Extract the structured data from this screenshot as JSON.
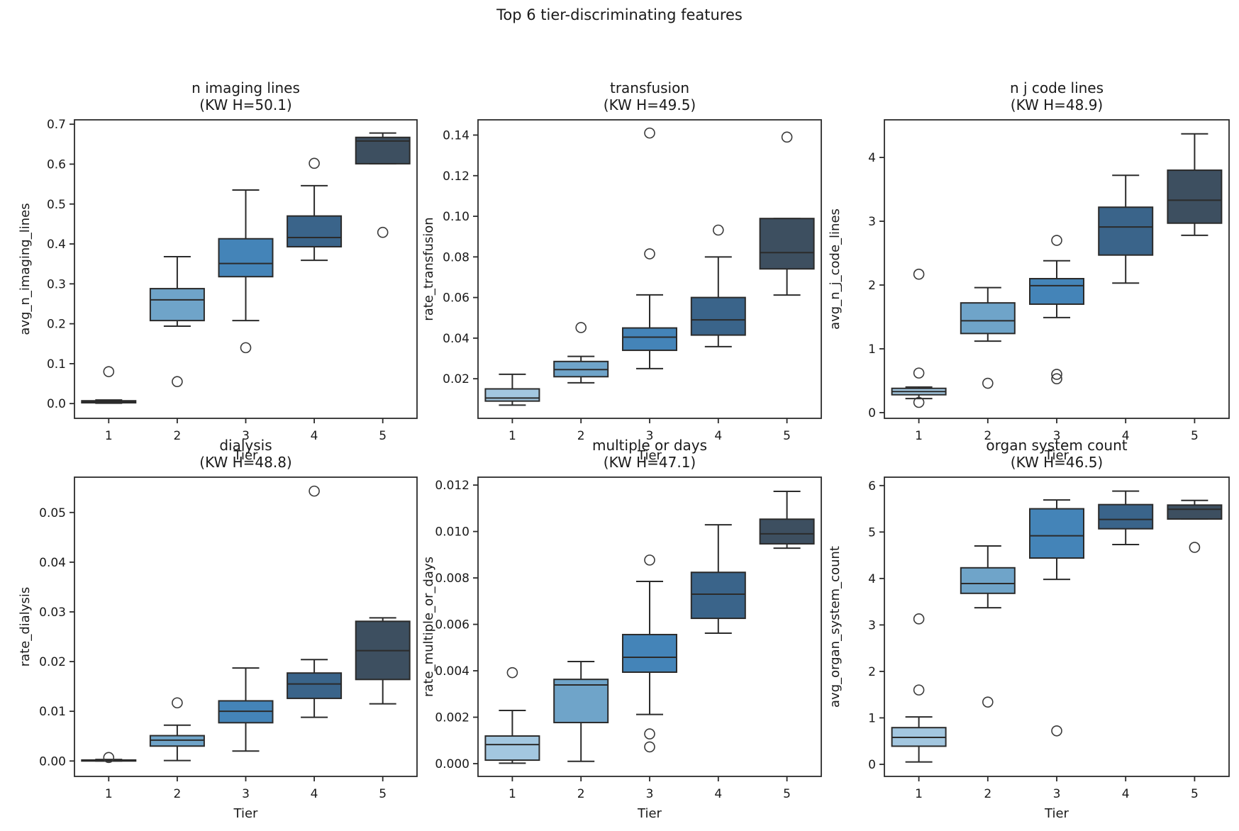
{
  "figure_title": "Top 6 tier-discriminating features",
  "palette": {
    "tier_colors": [
      "#a3c7e0",
      "#6fa4c9",
      "#4484b8",
      "#3a648a",
      "#3d4f60"
    ],
    "box_edge": "#2b2b2b",
    "text_color": "#1a1a1a",
    "background": "#ffffff"
  },
  "categories": [
    "1",
    "2",
    "3",
    "4",
    "5"
  ],
  "chart_data": [
    {
      "type": "box",
      "title": "n imaging lines",
      "subtitle": "(KW H=50.1)",
      "kw_h": 50.1,
      "xlabel": "Tier",
      "ylabel": "avg_n_imaging_lines",
      "ylim": [
        -0.037,
        0.711
      ],
      "yticks": {
        "values": [
          0.0,
          0.1,
          0.2,
          0.3,
          0.4,
          0.5,
          0.6,
          0.7
        ],
        "labels": [
          "0.0",
          "0.1",
          "0.2",
          "0.3",
          "0.4",
          "0.5",
          "0.6",
          "0.7"
        ]
      },
      "boxes": [
        {
          "tier": "1",
          "whislo": 0.001,
          "q1": 0.002,
          "med": 0.0045,
          "q3": 0.007,
          "whishi": 0.009,
          "fliers": [
            0.08
          ]
        },
        {
          "tier": "2",
          "whislo": 0.194,
          "q1": 0.208,
          "med": 0.26,
          "q3": 0.288,
          "whishi": 0.368,
          "fliers": [
            0.055
          ]
        },
        {
          "tier": "3",
          "whislo": 0.208,
          "q1": 0.318,
          "med": 0.351,
          "q3": 0.413,
          "whishi": 0.535,
          "fliers": [
            0.14
          ]
        },
        {
          "tier": "4",
          "whislo": 0.359,
          "q1": 0.393,
          "med": 0.416,
          "q3": 0.47,
          "whishi": 0.546,
          "fliers": [
            0.602
          ]
        },
        {
          "tier": "5",
          "whislo": 0.601,
          "q1": 0.601,
          "med": 0.658,
          "q3": 0.667,
          "whishi": 0.678,
          "fliers": [
            0.429
          ]
        }
      ]
    },
    {
      "type": "box",
      "title": "transfusion",
      "subtitle": "(KW H=49.5)",
      "kw_h": 49.5,
      "xlabel": "Tier",
      "ylabel": "rate_transfusion",
      "ylim": [
        0.0005,
        0.1475
      ],
      "yticks": {
        "values": [
          0.02,
          0.04,
          0.06,
          0.08,
          0.1,
          0.12,
          0.14
        ],
        "labels": [
          "0.02",
          "0.04",
          "0.06",
          "0.08",
          "0.10",
          "0.12",
          "0.14"
        ]
      },
      "boxes": [
        {
          "tier": "1",
          "whislo": 0.007,
          "q1": 0.009,
          "med": 0.0105,
          "q3": 0.015,
          "whishi": 0.0222,
          "fliers": []
        },
        {
          "tier": "2",
          "whislo": 0.018,
          "q1": 0.021,
          "med": 0.0245,
          "q3": 0.0285,
          "whishi": 0.031,
          "fliers": [
            0.0452
          ]
        },
        {
          "tier": "3",
          "whislo": 0.025,
          "q1": 0.034,
          "med": 0.0405,
          "q3": 0.045,
          "whishi": 0.0613,
          "fliers": [
            0.0815,
            0.141
          ]
        },
        {
          "tier": "4",
          "whislo": 0.0358,
          "q1": 0.0415,
          "med": 0.049,
          "q3": 0.06,
          "whishi": 0.08,
          "fliers": [
            0.0932
          ]
        },
        {
          "tier": "5",
          "whislo": 0.0612,
          "q1": 0.0741,
          "med": 0.0821,
          "q3": 0.0989,
          "whishi": 0.0989,
          "fliers": [
            0.139
          ]
        }
      ]
    },
    {
      "type": "box",
      "title": "n j code lines",
      "subtitle": "(KW H=48.9)",
      "kw_h": 48.9,
      "xlabel": "Tier",
      "ylabel": "avg_n_j_code_lines",
      "ylim": [
        -0.09,
        4.59
      ],
      "yticks": {
        "values": [
          0,
          1,
          2,
          3,
          4
        ],
        "labels": [
          "0",
          "1",
          "2",
          "3",
          "4"
        ]
      },
      "boxes": [
        {
          "tier": "1",
          "whislo": 0.22,
          "q1": 0.28,
          "med": 0.33,
          "q3": 0.38,
          "whishi": 0.4,
          "fliers": [
            2.17,
            0.62,
            0.16
          ]
        },
        {
          "tier": "2",
          "whislo": 1.12,
          "q1": 1.24,
          "med": 1.44,
          "q3": 1.72,
          "whishi": 1.96,
          "fliers": [
            0.46
          ]
        },
        {
          "tier": "3",
          "whislo": 1.49,
          "q1": 1.7,
          "med": 1.99,
          "q3": 2.1,
          "whishi": 2.38,
          "fliers": [
            2.7,
            0.6,
            0.53
          ]
        },
        {
          "tier": "4",
          "whislo": 2.03,
          "q1": 2.47,
          "med": 2.91,
          "q3": 3.22,
          "whishi": 3.72,
          "fliers": []
        },
        {
          "tier": "5",
          "whislo": 2.78,
          "q1": 2.97,
          "med": 3.33,
          "q3": 3.8,
          "whishi": 4.37,
          "fliers": []
        }
      ]
    },
    {
      "type": "box",
      "title": "dialysis",
      "subtitle": "(KW H=48.8)",
      "kw_h": 48.8,
      "xlabel": "Tier",
      "ylabel": "rate_dialysis",
      "ylim": [
        -0.0031,
        0.0571
      ],
      "yticks": {
        "values": [
          0.0,
          0.01,
          0.02,
          0.03,
          0.04,
          0.05
        ],
        "labels": [
          "0.00",
          "0.01",
          "0.02",
          "0.03",
          "0.04",
          "0.05"
        ]
      },
      "boxes": [
        {
          "tier": "1",
          "whislo": 0.0,
          "q1": 0.0,
          "med": 0.0001,
          "q3": 0.0002,
          "whishi": 0.0003,
          "fliers": [
            0.0007
          ]
        },
        {
          "tier": "2",
          "whislo": 0.0001,
          "q1": 0.003,
          "med": 0.0042,
          "q3": 0.0051,
          "whishi": 0.0072,
          "fliers": [
            0.0117
          ]
        },
        {
          "tier": "3",
          "whislo": 0.002,
          "q1": 0.0077,
          "med": 0.01,
          "q3": 0.0121,
          "whishi": 0.0187,
          "fliers": []
        },
        {
          "tier": "4",
          "whislo": 0.0088,
          "q1": 0.0126,
          "med": 0.0155,
          "q3": 0.0177,
          "whishi": 0.0204,
          "fliers": [
            0.0543
          ]
        },
        {
          "tier": "5",
          "whislo": 0.0115,
          "q1": 0.0164,
          "med": 0.0222,
          "q3": 0.0281,
          "whishi": 0.0288,
          "fliers": []
        }
      ]
    },
    {
      "type": "box",
      "title": "multiple or days",
      "subtitle": "(KW H=47.1)",
      "kw_h": 47.1,
      "xlabel": "Tier",
      "ylabel": "rate_multiple_or_days",
      "ylim": [
        -0.00055,
        0.01234
      ],
      "yticks": {
        "values": [
          0.0,
          0.002,
          0.004,
          0.006,
          0.008,
          0.01,
          0.012
        ],
        "labels": [
          "0.000",
          "0.002",
          "0.004",
          "0.006",
          "0.008",
          "0.010",
          "0.012"
        ]
      },
      "boxes": [
        {
          "tier": "1",
          "whislo": 2e-05,
          "q1": 0.00015,
          "med": 0.00082,
          "q3": 0.00119,
          "whishi": 0.00229,
          "fliers": [
            0.00392
          ]
        },
        {
          "tier": "2",
          "whislo": 0.0001,
          "q1": 0.00177,
          "med": 0.00339,
          "q3": 0.00363,
          "whishi": 0.0044,
          "fliers": []
        },
        {
          "tier": "3",
          "whislo": 0.00212,
          "q1": 0.00394,
          "med": 0.00458,
          "q3": 0.00556,
          "whishi": 0.00785,
          "fliers": [
            0.00877,
            0.00128,
            0.00072
          ]
        },
        {
          "tier": "4",
          "whislo": 0.00562,
          "q1": 0.00626,
          "med": 0.0073,
          "q3": 0.00824,
          "whishi": 0.01029,
          "fliers": []
        },
        {
          "tier": "5",
          "whislo": 0.00928,
          "q1": 0.00947,
          "med": 0.0099,
          "q3": 0.01053,
          "whishi": 0.01173,
          "fliers": []
        }
      ]
    },
    {
      "type": "box",
      "title": "organ system count",
      "subtitle": "(KW H=46.5)",
      "kw_h": 46.5,
      "xlabel": "Tier",
      "ylabel": "avg_organ_system_count",
      "ylim": [
        -0.26,
        6.18
      ],
      "yticks": {
        "values": [
          0,
          1,
          2,
          3,
          4,
          5,
          6
        ],
        "labels": [
          "0",
          "1",
          "2",
          "3",
          "4",
          "5",
          "6"
        ]
      },
      "boxes": [
        {
          "tier": "1",
          "whislo": 0.05,
          "q1": 0.39,
          "med": 0.58,
          "q3": 0.79,
          "whishi": 1.02,
          "fliers": [
            3.13,
            1.6
          ]
        },
        {
          "tier": "2",
          "whislo": 3.37,
          "q1": 3.68,
          "med": 3.89,
          "q3": 4.23,
          "whishi": 4.7,
          "fliers": [
            1.34
          ]
        },
        {
          "tier": "3",
          "whislo": 3.98,
          "q1": 4.44,
          "med": 4.92,
          "q3": 5.5,
          "whishi": 5.69,
          "fliers": [
            0.72
          ]
        },
        {
          "tier": "4",
          "whislo": 4.73,
          "q1": 5.07,
          "med": 5.27,
          "q3": 5.59,
          "whishi": 5.88,
          "fliers": []
        },
        {
          "tier": "5",
          "whislo": 5.28,
          "q1": 5.28,
          "med": 5.49,
          "q3": 5.58,
          "whishi": 5.68,
          "fliers": [
            4.67
          ]
        }
      ]
    }
  ]
}
